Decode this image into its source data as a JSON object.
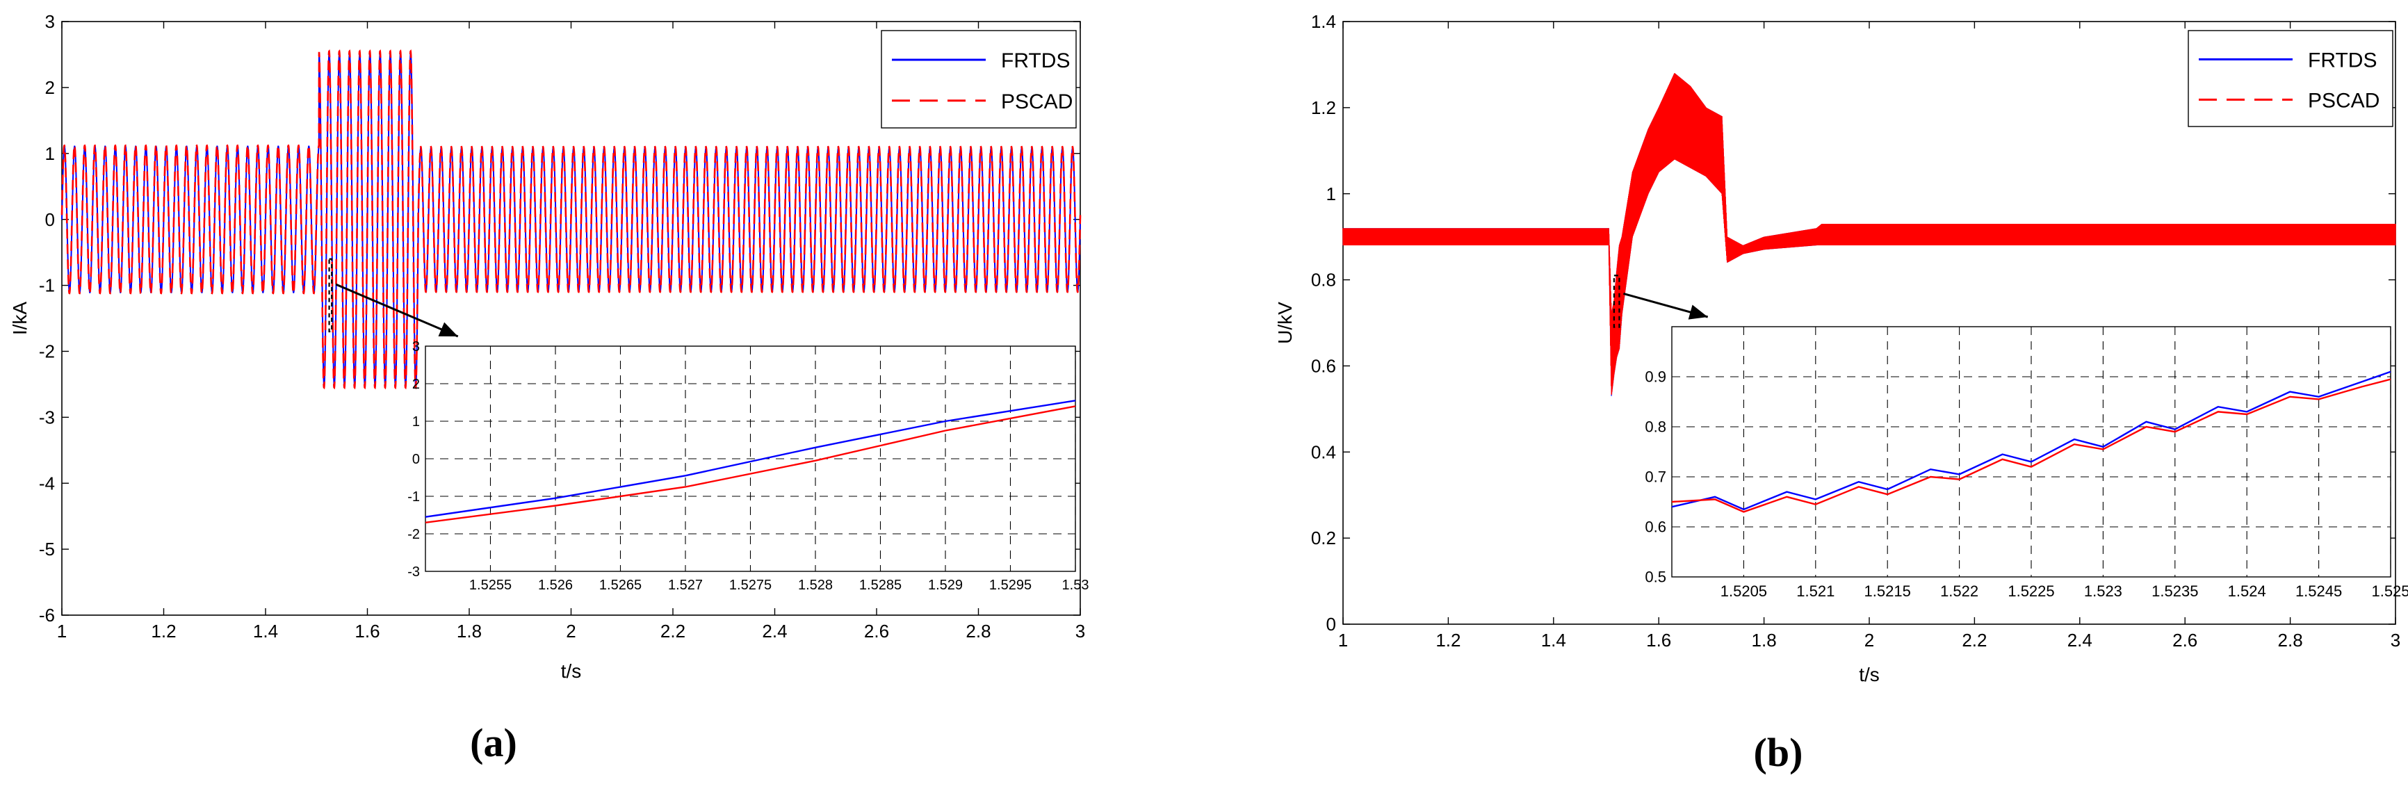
{
  "chart_data": [
    {
      "type": "line",
      "panel_label": "(a)",
      "xlabel": "t/s",
      "ylabel": "I/kA",
      "xlim": [
        1,
        3
      ],
      "ylim": [
        -6,
        3
      ],
      "xticks": [
        1,
        1.2,
        1.4,
        1.6,
        1.8,
        2,
        2.2,
        2.4,
        2.6,
        2.8,
        3
      ],
      "xtick_labels": [
        "1",
        "1.2",
        "1.4",
        "1.6",
        "1.8",
        "2",
        "2.2",
        "2.4",
        "2.6",
        "2.8",
        "3"
      ],
      "yticks": [
        -6,
        -5,
        -4,
        -3,
        -2,
        -1,
        0,
        1,
        2,
        3
      ],
      "ytick_labels": [
        "-6",
        "-5",
        "-4",
        "-3",
        "-2",
        "-1",
        "0",
        "1",
        "2",
        "3"
      ],
      "grid": false,
      "legend_position": "top-right",
      "series": [
        {
          "name": "FRTDS",
          "color": "#0000ff",
          "style": "solid"
        },
        {
          "name": "PSCAD",
          "color": "#ff0000",
          "style": "dashed"
        }
      ],
      "signal": {
        "kind": "ac-current",
        "cycles_per_unit": 50,
        "segments": [
          {
            "t0": 1.0,
            "t1": 1.505,
            "amplitude": 1.12
          },
          {
            "t0": 1.505,
            "t1": 1.7,
            "amplitude": 2.55
          },
          {
            "t0": 1.7,
            "t1": 3.0,
            "amplitude": 1.1
          }
        ]
      },
      "zoom_box": {
        "x": [
          1.525,
          1.53
        ],
        "y": [
          -1.7,
          -0.6
        ]
      },
      "inset": {
        "xlim": [
          1.525,
          1.53
        ],
        "ylim": [
          -3,
          3
        ],
        "xticks": [
          1.5255,
          1.526,
          1.5265,
          1.527,
          1.5275,
          1.528,
          1.5285,
          1.529,
          1.5295,
          1.53
        ],
        "xtick_labels": [
          "1.5255",
          "1.526",
          "1.5265",
          "1.527",
          "1.5275",
          "1.528",
          "1.5285",
          "1.529",
          "1.5295",
          "1.53"
        ],
        "yticks": [
          -3,
          -2,
          -1,
          0,
          1,
          2,
          3
        ],
        "ytick_labels": [
          "-3",
          "-2",
          "-1",
          "0",
          "1",
          "2",
          "3"
        ],
        "grid": true,
        "series": [
          {
            "name": "FRTDS",
            "color": "#0000ff",
            "x": [
              1.525,
              1.526,
              1.527,
              1.528,
              1.529,
              1.53
            ],
            "y": [
              -1.55,
              -1.05,
              -0.45,
              0.3,
              1.0,
              1.55
            ]
          },
          {
            "name": "PSCAD",
            "color": "#ff0000",
            "x": [
              1.525,
              1.526,
              1.527,
              1.528,
              1.529,
              1.53
            ],
            "y": [
              -1.7,
              -1.25,
              -0.75,
              -0.05,
              0.75,
              1.4
            ]
          }
        ]
      }
    },
    {
      "type": "line",
      "panel_label": "(b)",
      "xlabel": "t/s",
      "ylabel": "U/kV",
      "xlim": [
        1,
        3
      ],
      "ylim": [
        0,
        1.4
      ],
      "xticks": [
        1,
        1.2,
        1.4,
        1.6,
        1.8,
        2,
        2.2,
        2.4,
        2.6,
        2.8,
        3
      ],
      "xtick_labels": [
        "1",
        "1.2",
        "1.4",
        "1.6",
        "1.8",
        "2",
        "2.2",
        "2.4",
        "2.6",
        "2.8",
        "3"
      ],
      "yticks": [
        0,
        0.2,
        0.4,
        0.6,
        0.8,
        1,
        1.2,
        1.4
      ],
      "ytick_labels": [
        "0",
        "0.2",
        "0.4",
        "0.6",
        "0.8",
        "1",
        "1.2",
        "1.4"
      ],
      "grid": false,
      "legend_position": "top-right",
      "series": [
        {
          "name": "FRTDS",
          "color": "#0000ff",
          "style": "solid"
        },
        {
          "name": "PSCAD",
          "color": "#ff0000",
          "style": "dashed"
        }
      ],
      "envelope": {
        "t": [
          1.0,
          1.5,
          1.505,
          1.51,
          1.515,
          1.52,
          1.525,
          1.53,
          1.55,
          1.58,
          1.6,
          1.63,
          1.66,
          1.69,
          1.72,
          1.73,
          1.76,
          1.8,
          1.9,
          1.91,
          2.2,
          2.6,
          3.0
        ],
        "hi": [
          0.92,
          0.92,
          0.92,
          0.72,
          0.75,
          0.82,
          0.88,
          0.9,
          1.05,
          1.15,
          1.2,
          1.28,
          1.25,
          1.2,
          1.18,
          0.9,
          0.88,
          0.9,
          0.92,
          0.93,
          0.93,
          0.93,
          0.93
        ],
        "lo": [
          0.88,
          0.88,
          0.88,
          0.53,
          0.58,
          0.62,
          0.64,
          0.72,
          0.9,
          1.0,
          1.05,
          1.08,
          1.06,
          1.04,
          1.0,
          0.84,
          0.86,
          0.87,
          0.88,
          0.88,
          0.88,
          0.88,
          0.88
        ]
      },
      "zoom_box": {
        "x": [
          1.515,
          1.525
        ],
        "y": [
          0.69,
          0.81
        ]
      },
      "inset": {
        "xlim": [
          1.52,
          1.525
        ],
        "ylim": [
          0.5,
          1.0
        ],
        "xticks": [
          1.5205,
          1.521,
          1.5215,
          1.522,
          1.5225,
          1.523,
          1.5235,
          1.524,
          1.5245,
          1.525
        ],
        "xtick_labels": [
          "1.5205",
          "1.521",
          "1.5215",
          "1.522",
          "1.5225",
          "1.523",
          "1.5235",
          "1.524",
          "1.5245",
          "1.525"
        ],
        "yticks": [
          0.5,
          0.6,
          0.7,
          0.8,
          0.9
        ],
        "ytick_labels": [
          "0.5",
          "0.6",
          "0.7",
          "0.8",
          "0.9"
        ],
        "grid": true,
        "series": [
          {
            "name": "FRTDS",
            "color": "#0000ff",
            "x": [
              1.52,
              1.5203,
              1.5205,
              1.5208,
              1.521,
              1.5213,
              1.5215,
              1.5218,
              1.522,
              1.5223,
              1.5225,
              1.5228,
              1.523,
              1.5233,
              1.5235,
              1.5238,
              1.524,
              1.5243,
              1.5245,
              1.5248,
              1.525
            ],
            "y": [
              0.64,
              0.66,
              0.635,
              0.67,
              0.655,
              0.69,
              0.675,
              0.715,
              0.705,
              0.745,
              0.73,
              0.775,
              0.76,
              0.81,
              0.795,
              0.84,
              0.83,
              0.87,
              0.86,
              0.89,
              0.91
            ]
          },
          {
            "name": "PSCAD",
            "color": "#ff0000",
            "x": [
              1.52,
              1.5203,
              1.5205,
              1.5208,
              1.521,
              1.5213,
              1.5215,
              1.5218,
              1.522,
              1.5223,
              1.5225,
              1.5228,
              1.523,
              1.5233,
              1.5235,
              1.5238,
              1.524,
              1.5243,
              1.5245,
              1.5248,
              1.525
            ],
            "y": [
              0.65,
              0.655,
              0.63,
              0.66,
              0.645,
              0.68,
              0.665,
              0.7,
              0.695,
              0.735,
              0.72,
              0.765,
              0.755,
              0.8,
              0.79,
              0.83,
              0.825,
              0.86,
              0.855,
              0.88,
              0.895
            ]
          }
        ]
      }
    }
  ]
}
